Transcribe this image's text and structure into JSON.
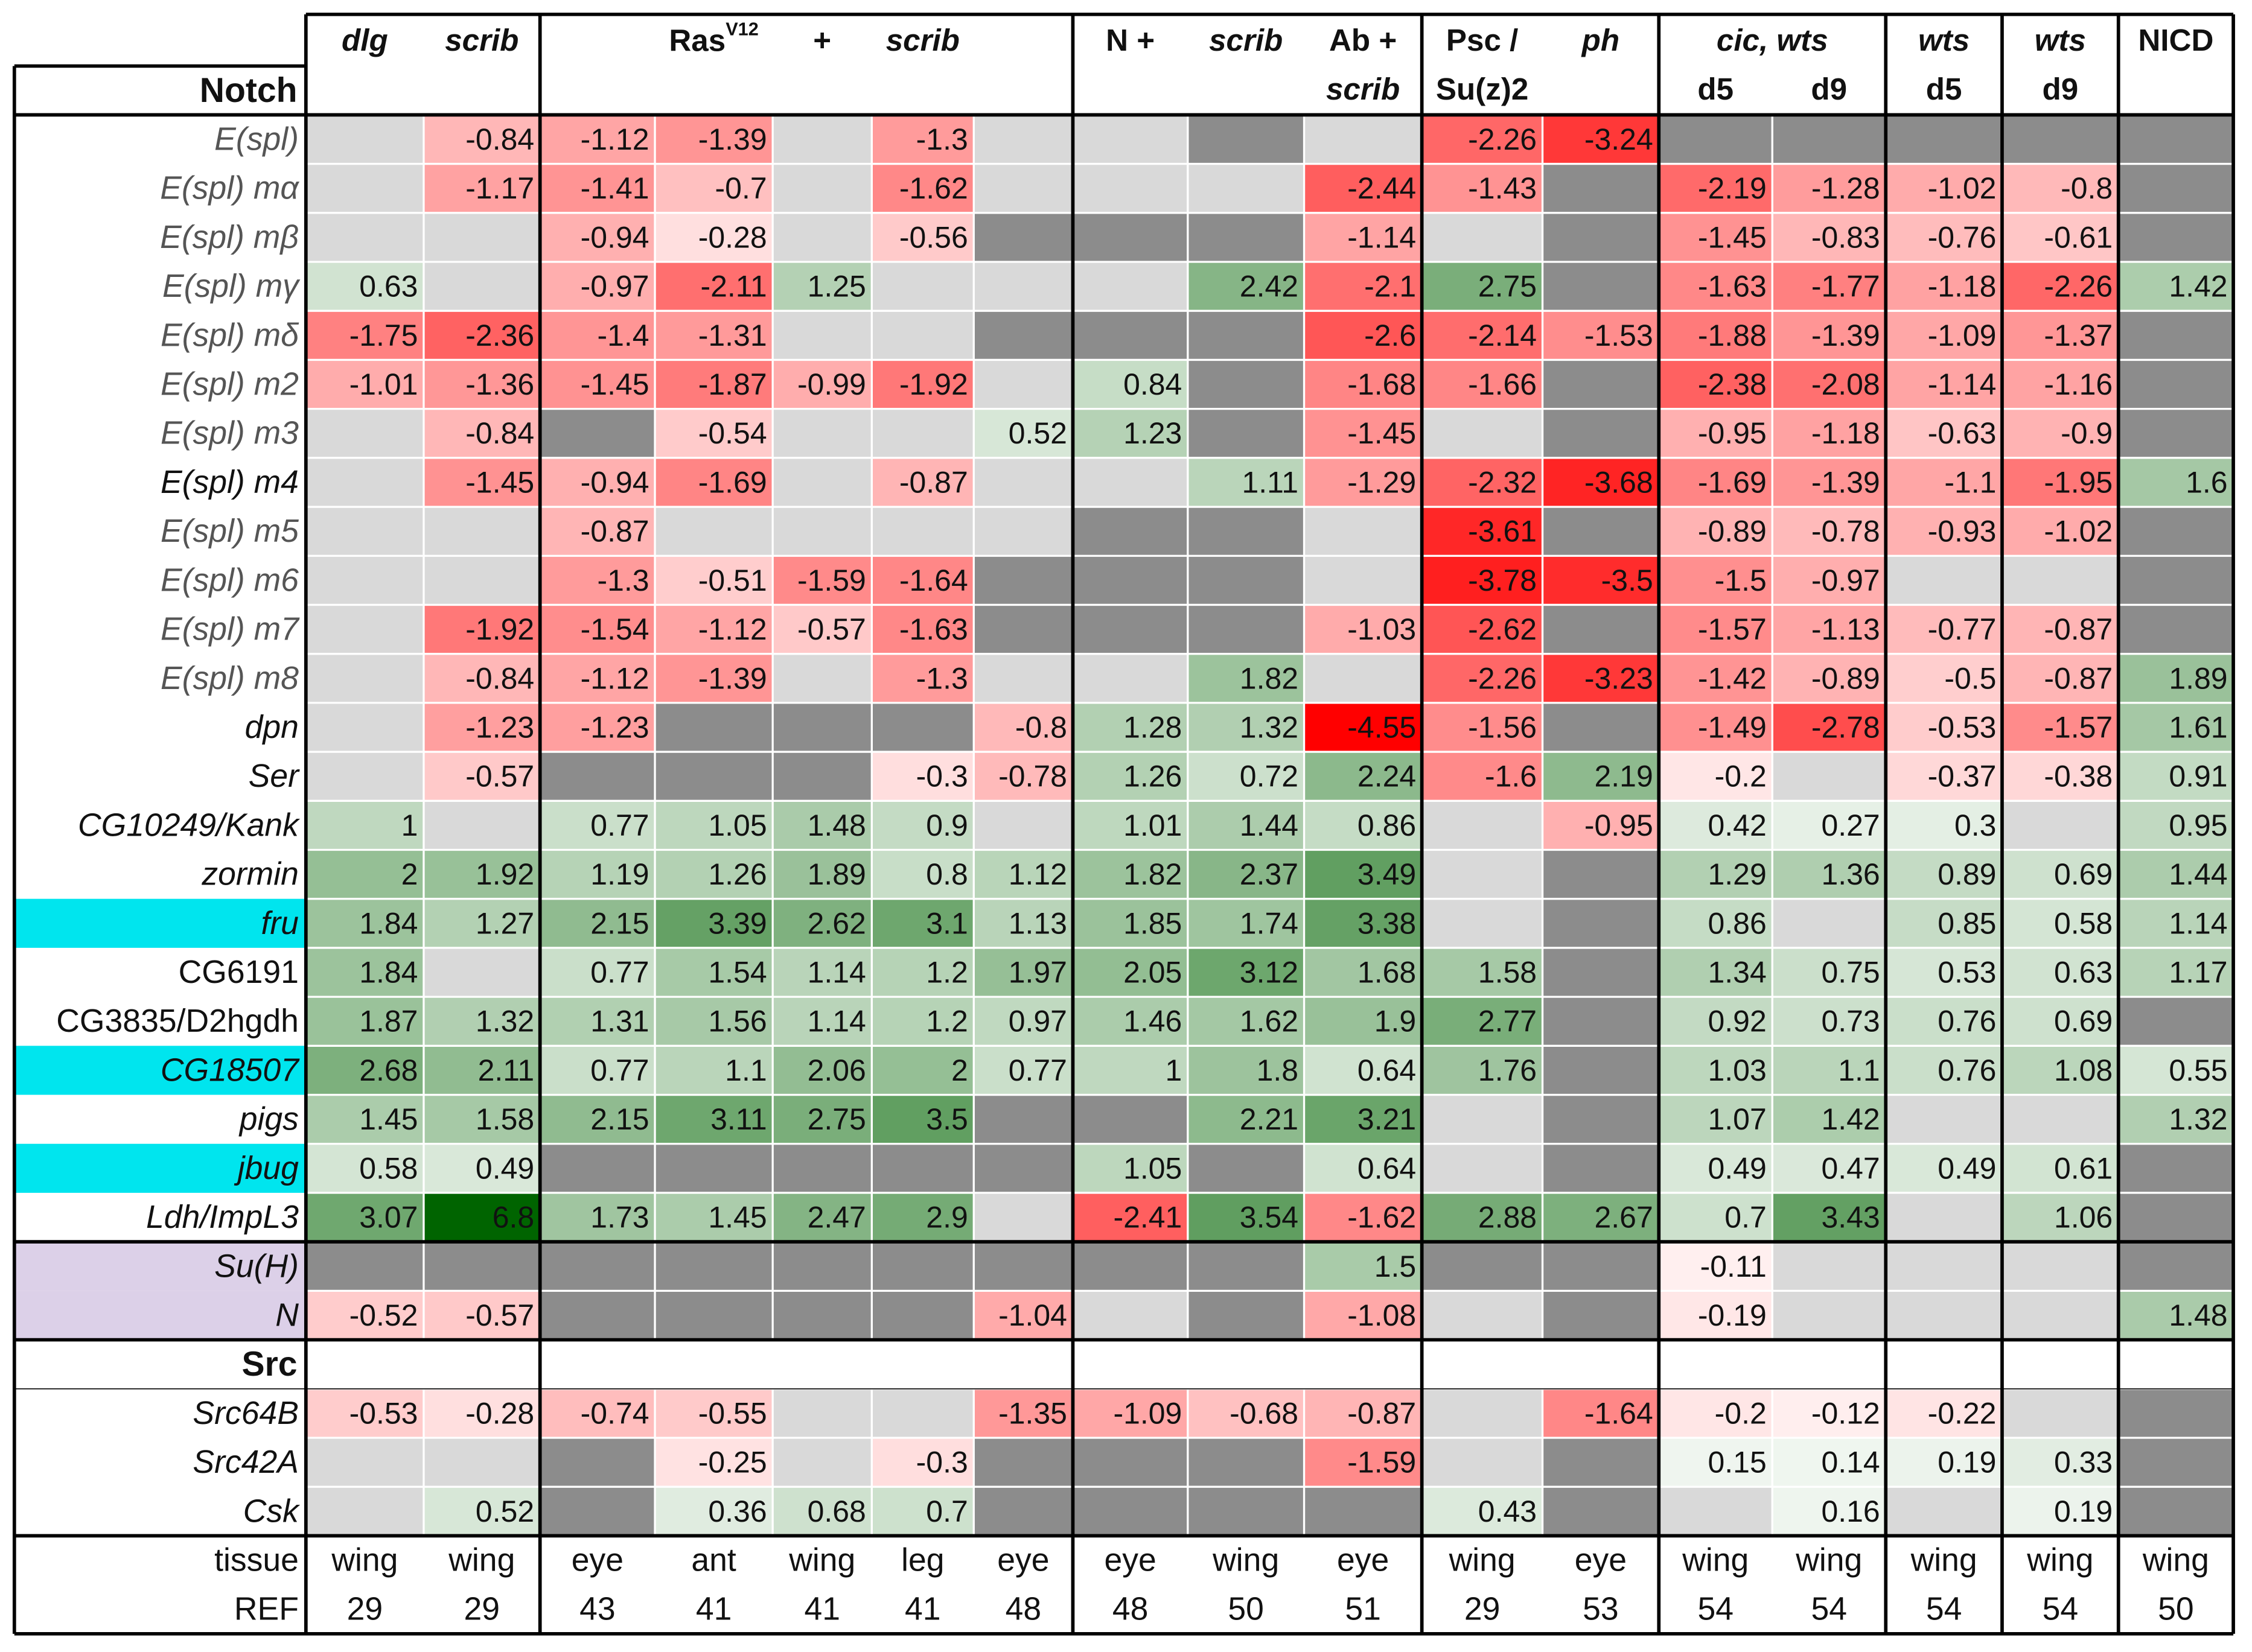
{
  "chart_data": {
    "type": "heatmap",
    "title": "",
    "color_scale": {
      "negative": "#ff0000",
      "positive": "#006400",
      "missing": "#8c8c8c",
      "absent": "#d9d9d9",
      "neg_at_full": 4.5,
      "pos_at_full": 6.8
    },
    "headers": {
      "row1": [
        {
          "text": "dlg",
          "italic": true,
          "col": 0
        },
        {
          "text": "scrib",
          "italic": true,
          "col": 1
        },
        {
          "text": "Ras",
          "sup": "V12",
          "italic": false,
          "col": 3
        },
        {
          "text": "+",
          "italic": false,
          "col": 4
        },
        {
          "text": "scrib",
          "italic": true,
          "col": 5
        },
        {
          "text": "N +",
          "italic": false,
          "col": 7
        },
        {
          "text": "scrib",
          "italic": true,
          "col": 8
        },
        {
          "text": "Ab +",
          "italic": false,
          "col": 9
        },
        {
          "text": "Psc /",
          "italic": false,
          "col": 10
        },
        {
          "text": "ph",
          "italic": true,
          "col": 11
        },
        {
          "text": "cic, wts",
          "italic": true,
          "col": 12.5
        },
        {
          "text": "wts",
          "italic": true,
          "col": 14
        },
        {
          "text": "wts",
          "italic": true,
          "col": 15
        },
        {
          "text": "NICD",
          "italic": false,
          "col": 16
        }
      ],
      "row2": [
        {
          "text": "scrib",
          "italic": true,
          "col": 9
        },
        {
          "text": "Su(z)2",
          "italic": false,
          "col": 10
        },
        {
          "text": "d5",
          "italic": false,
          "col": 12
        },
        {
          "text": "d9",
          "italic": false,
          "col": 13
        },
        {
          "text": "d5",
          "italic": false,
          "col": 14
        },
        {
          "text": "d9",
          "italic": false,
          "col": 15
        }
      ]
    },
    "sections": [
      {
        "name": "Notch",
        "rows": [
          {
            "gene": "E(spl)",
            "style": "italic-grey",
            "highlight": null,
            "values": [
              "A",
              -0.84,
              -1.12,
              -1.39,
              "A",
              -1.3,
              "A",
              "A",
              "M",
              "A",
              -2.26,
              -3.24,
              "M",
              "M",
              "M",
              "M",
              "M"
            ]
          },
          {
            "gene": "E(spl) mα",
            "style": "italic-grey",
            "highlight": null,
            "values": [
              "A",
              -1.17,
              -1.41,
              -0.7,
              "A",
              -1.62,
              "A",
              "A",
              "A",
              -2.44,
              -1.43,
              "M",
              -2.19,
              -1.28,
              -1.02,
              -0.8,
              "M"
            ]
          },
          {
            "gene": "E(spl) mβ",
            "style": "italic-grey",
            "highlight": null,
            "values": [
              "A",
              "A",
              -0.94,
              -0.28,
              "A",
              -0.56,
              "M",
              "M",
              "M",
              -1.14,
              "A",
              "M",
              -1.45,
              -0.83,
              -0.76,
              -0.61,
              "M"
            ]
          },
          {
            "gene": "E(spl) mγ",
            "style": "italic-grey",
            "highlight": null,
            "values": [
              0.63,
              "A",
              -0.97,
              -2.11,
              1.25,
              "A",
              "A",
              "A",
              2.42,
              -2.1,
              2.75,
              "M",
              -1.63,
              -1.77,
              -1.18,
              -2.26,
              1.42
            ]
          },
          {
            "gene": "E(spl) mδ",
            "style": "italic-grey",
            "highlight": null,
            "values": [
              -1.75,
              -2.36,
              -1.4,
              -1.31,
              "A",
              "A",
              "M",
              "M",
              "M",
              -2.6,
              -2.14,
              -1.53,
              -1.88,
              -1.39,
              -1.09,
              -1.37,
              "M"
            ]
          },
          {
            "gene": "E(spl) m2",
            "style": "italic-grey",
            "highlight": null,
            "values": [
              -1.01,
              -1.36,
              -1.45,
              -1.87,
              -0.99,
              -1.92,
              "A",
              0.84,
              "M",
              -1.68,
              -1.66,
              "M",
              -2.38,
              -2.08,
              -1.14,
              -1.16,
              "M"
            ]
          },
          {
            "gene": "E(spl) m3",
            "style": "italic-grey",
            "highlight": null,
            "values": [
              "A",
              -0.84,
              "M",
              -0.54,
              "A",
              "A",
              0.52,
              1.23,
              "M",
              -1.45,
              "A",
              "M",
              -0.95,
              -1.18,
              -0.63,
              -0.9,
              "M"
            ]
          },
          {
            "gene": "E(spl) m4",
            "style": "italic",
            "highlight": null,
            "values": [
              "A",
              -1.45,
              -0.94,
              -1.69,
              "A",
              -0.87,
              "A",
              "A",
              1.11,
              -1.29,
              -2.32,
              -3.68,
              -1.69,
              -1.39,
              -1.1,
              -1.95,
              1.6
            ]
          },
          {
            "gene": "E(spl) m5",
            "style": "italic-grey",
            "highlight": null,
            "values": [
              "A",
              "A",
              -0.87,
              "A",
              "A",
              "A",
              "A",
              "M",
              "M",
              "A",
              -3.61,
              "M",
              -0.89,
              -0.78,
              -0.93,
              -1.02,
              "M"
            ]
          },
          {
            "gene": "E(spl) m6",
            "style": "italic-grey",
            "highlight": null,
            "values": [
              "A",
              "A",
              -1.3,
              -0.51,
              -1.59,
              -1.64,
              "M",
              "M",
              "M",
              "A",
              -3.78,
              -3.5,
              -1.5,
              -0.97,
              "A",
              "A",
              "M"
            ]
          },
          {
            "gene": "E(spl) m7",
            "style": "italic-grey",
            "highlight": null,
            "values": [
              "A",
              -1.92,
              -1.54,
              -1.12,
              -0.57,
              -1.63,
              "M",
              "M",
              "M",
              -1.03,
              -2.62,
              "M",
              -1.57,
              -1.13,
              -0.77,
              -0.87,
              "M"
            ]
          },
          {
            "gene": "E(spl) m8",
            "style": "italic-grey",
            "highlight": null,
            "values": [
              "A",
              -0.84,
              -1.12,
              -1.39,
              "A",
              -1.3,
              "A",
              "A",
              1.82,
              "A",
              -2.26,
              -3.23,
              -1.42,
              -0.89,
              -0.5,
              -0.87,
              1.89
            ]
          },
          {
            "gene": "dpn",
            "style": "italic",
            "highlight": null,
            "values": [
              "A",
              -1.23,
              -1.23,
              "M",
              "M",
              "M",
              -0.8,
              1.28,
              1.32,
              -4.55,
              -1.56,
              "M",
              -1.49,
              -2.78,
              -0.53,
              -1.57,
              1.61
            ]
          },
          {
            "gene": "Ser",
            "style": "italic",
            "highlight": null,
            "values": [
              "A",
              -0.57,
              "M",
              "M",
              "M",
              -0.3,
              -0.78,
              1.26,
              0.72,
              2.24,
              -1.6,
              2.19,
              -0.2,
              "A",
              -0.37,
              -0.38,
              0.91
            ]
          },
          {
            "gene": "CG10249/Kank",
            "style": "italic",
            "highlight": null,
            "values": [
              1,
              "A",
              0.77,
              1.05,
              1.48,
              0.9,
              "A",
              1.01,
              1.44,
              0.86,
              "A",
              -0.95,
              0.42,
              0.27,
              0.3,
              "A",
              0.95
            ]
          },
          {
            "gene": "zormin",
            "style": "italic",
            "highlight": null,
            "values": [
              2,
              1.92,
              1.19,
              1.26,
              1.89,
              0.8,
              1.12,
              1.82,
              2.37,
              3.49,
              "A",
              "M",
              1.29,
              1.36,
              0.89,
              0.69,
              1.44
            ]
          },
          {
            "gene": "fru",
            "style": "italic",
            "highlight": "cyan",
            "values": [
              1.84,
              1.27,
              2.15,
              3.39,
              2.62,
              3.1,
              1.13,
              1.85,
              1.74,
              3.38,
              "A",
              "M",
              0.86,
              "A",
              0.85,
              0.58,
              1.14
            ]
          },
          {
            "gene": "CG6191",
            "style": "plain",
            "highlight": null,
            "values": [
              1.84,
              "A",
              0.77,
              1.54,
              1.14,
              1.2,
              1.97,
              2.05,
              3.12,
              1.68,
              1.58,
              "M",
              1.34,
              0.75,
              0.53,
              0.63,
              1.17
            ]
          },
          {
            "gene": "CG3835/D2hgdh",
            "style": "plain",
            "highlight": null,
            "values": [
              1.87,
              1.32,
              1.31,
              1.56,
              1.14,
              1.2,
              0.97,
              1.46,
              1.62,
              1.9,
              2.77,
              "M",
              0.92,
              0.73,
              0.76,
              0.69,
              "M"
            ]
          },
          {
            "gene": "CG18507",
            "style": "italic",
            "highlight": "cyan",
            "values": [
              2.68,
              2.11,
              0.77,
              1.1,
              2.06,
              2,
              0.77,
              1,
              1.8,
              0.64,
              1.76,
              "M",
              1.03,
              1.1,
              0.76,
              1.08,
              0.55
            ]
          },
          {
            "gene": "pigs",
            "style": "italic",
            "highlight": null,
            "values": [
              1.45,
              1.58,
              2.15,
              3.11,
              2.75,
              3.5,
              "M",
              "M",
              2.21,
              3.21,
              "A",
              "M",
              1.07,
              1.42,
              "A",
              "A",
              1.32
            ]
          },
          {
            "gene": "jbug",
            "style": "italic",
            "highlight": "cyan",
            "values": [
              0.58,
              0.49,
              "M",
              "M",
              "M",
              "M",
              "M",
              1.05,
              "M",
              0.64,
              "A",
              "M",
              0.49,
              0.47,
              0.49,
              0.61,
              "M"
            ]
          },
          {
            "gene": "Ldh/ImpL3",
            "style": "italic",
            "highlight": null,
            "values": [
              3.07,
              6.8,
              1.73,
              1.45,
              2.47,
              2.9,
              "A",
              -2.41,
              3.54,
              -1.62,
              2.88,
              2.67,
              0.7,
              3.43,
              "A",
              1.06,
              "M"
            ]
          },
          {
            "gene": "Su(H)",
            "style": "italic",
            "highlight": "lavender",
            "values": [
              "M",
              "M",
              "M",
              "M",
              "M",
              "M",
              "M",
              "M",
              "M",
              1.5,
              "M",
              "M",
              -0.11,
              "A",
              "A",
              "A",
              "M"
            ]
          },
          {
            "gene": "N",
            "style": "italic",
            "highlight": "lavender",
            "values": [
              -0.52,
              -0.57,
              "M",
              "M",
              "M",
              "M",
              -1.04,
              "A",
              "M",
              -1.08,
              "A",
              "M",
              -0.19,
              "A",
              "A",
              "A",
              1.48
            ]
          }
        ]
      },
      {
        "name": "Src",
        "rows": [
          {
            "gene": "Src64B",
            "style": "italic",
            "highlight": null,
            "values": [
              -0.53,
              -0.28,
              -0.74,
              -0.55,
              "A",
              "A",
              -1.35,
              -1.09,
              -0.68,
              -0.87,
              "A",
              -1.64,
              -0.2,
              -0.12,
              -0.22,
              "A",
              "M"
            ]
          },
          {
            "gene": "Src42A",
            "style": "italic",
            "highlight": null,
            "values": [
              "A",
              "A",
              "M",
              -0.25,
              "A",
              -0.3,
              "M",
              "M",
              "M",
              -1.59,
              "A",
              "M",
              0.15,
              0.14,
              0.19,
              0.33,
              "M"
            ]
          },
          {
            "gene": "Csk",
            "style": "italic",
            "highlight": null,
            "values": [
              "A",
              0.52,
              "M",
              0.36,
              0.68,
              0.7,
              "M",
              "M",
              "M",
              "M",
              0.43,
              "M",
              "A",
              0.16,
              "A",
              0.19,
              "M"
            ]
          }
        ]
      }
    ],
    "footer": {
      "tissue": {
        "label": "tissue",
        "values": [
          "wing",
          "wing",
          "eye",
          "ant",
          "wing",
          "leg",
          "eye",
          "eye",
          "wing",
          "eye",
          "wing",
          "eye",
          "wing",
          "wing",
          "wing",
          "wing",
          "wing"
        ]
      },
      "ref": {
        "label": "REF",
        "values": [
          "29",
          "29",
          "43",
          "41",
          "41",
          "41",
          "48",
          "48",
          "50",
          "51",
          "29",
          "53",
          "54",
          "54",
          "54",
          "54",
          "50"
        ]
      }
    }
  }
}
